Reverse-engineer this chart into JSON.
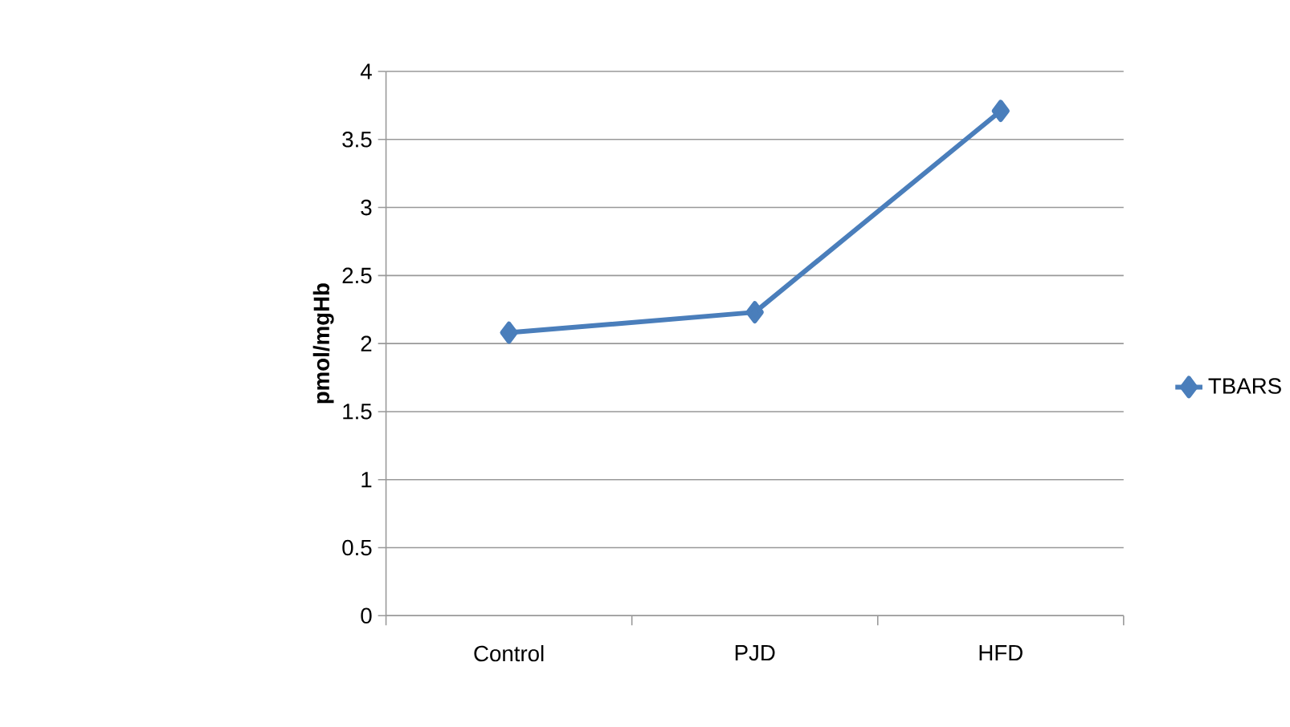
{
  "chart_data": {
    "type": "line",
    "ylabel": "pmol/mgHb",
    "categories": [
      "Control",
      "PJD",
      "HFD"
    ],
    "series": [
      {
        "name": "TBARS",
        "color": "#4a7ebb",
        "values": [
          2.08,
          2.23,
          3.71
        ]
      }
    ],
    "ylim": [
      0,
      4
    ],
    "yticks": [
      0,
      0.5,
      1,
      1.5,
      2,
      2.5,
      3,
      3.5,
      4
    ],
    "grid": "y",
    "legend": "right",
    "marker": "diamond",
    "line_style": "solid"
  }
}
